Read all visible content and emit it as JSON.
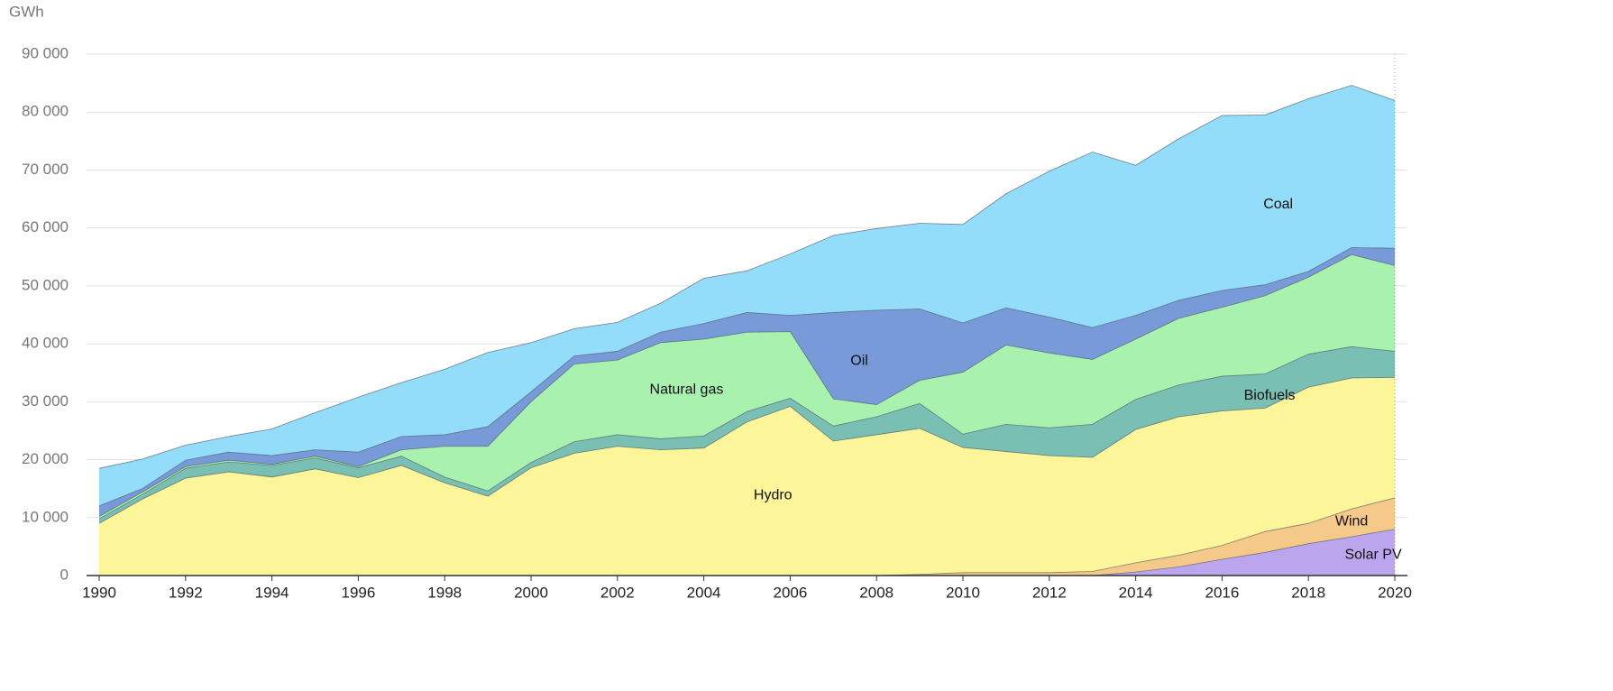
{
  "chart_data": {
    "type": "stacked-area",
    "y_label": "GWh",
    "x": [
      1990,
      1991,
      1992,
      1993,
      1994,
      1995,
      1996,
      1997,
      1998,
      1999,
      2000,
      2001,
      2002,
      2003,
      2004,
      2005,
      2006,
      2007,
      2008,
      2009,
      2010,
      2011,
      2012,
      2013,
      2014,
      2015,
      2016,
      2017,
      2018,
      2019,
      2020
    ],
    "xlim": [
      1990,
      2020
    ],
    "xticks": [
      1990,
      1992,
      1994,
      1996,
      1998,
      2000,
      2002,
      2004,
      2006,
      2008,
      2010,
      2012,
      2014,
      2016,
      2018,
      2020
    ],
    "ylim": [
      0,
      90000
    ],
    "yticks": [
      0,
      {
        "value": 10000,
        "label": "10 000"
      },
      {
        "value": 20000,
        "label": "20 000"
      },
      {
        "value": 30000,
        "label": "30 000"
      },
      {
        "value": 40000,
        "label": "40 000"
      },
      {
        "value": 50000,
        "label": "50 000"
      },
      {
        "value": 60000,
        "label": "60 000"
      },
      {
        "value": 70000,
        "label": "70 000"
      },
      {
        "value": 80000,
        "label": "80 000"
      },
      {
        "value": 90000,
        "label": "90 000"
      }
    ],
    "grid": true,
    "series": [
      {
        "name": "Solar PV",
        "color": "#bba6ee",
        "values": [
          0,
          0,
          0,
          0,
          0,
          0,
          0,
          0,
          0,
          0,
          0,
          0,
          0,
          0,
          0,
          0,
          0,
          0,
          0,
          0,
          0,
          0,
          0,
          0,
          600,
          1500,
          2800,
          4000,
          5500,
          6700,
          8000
        ]
      },
      {
        "name": "Wind",
        "color": "#f5c98a",
        "values": [
          0,
          0,
          0,
          0,
          0,
          0,
          0,
          0,
          0,
          0,
          0,
          0,
          0,
          0,
          0,
          0,
          0,
          0,
          0,
          200,
          500,
          500,
          500,
          700,
          1600,
          2000,
          2400,
          3600,
          3500,
          4800,
          5400
        ]
      },
      {
        "name": "Hydro",
        "color": "#fdf59a",
        "values": [
          9000,
          13200,
          16800,
          17900,
          17000,
          18400,
          16900,
          19000,
          16000,
          13700,
          18600,
          21100,
          22300,
          21700,
          22000,
          26500,
          29200,
          23200,
          24300,
          25200,
          21600,
          20900,
          20200,
          19700,
          23000,
          23900,
          23200,
          21300,
          23500,
          22600,
          20800
        ]
      },
      {
        "name": "Biofuels",
        "color": "#79bfb4",
        "values": [
          800,
          800,
          1700,
          1700,
          2000,
          1900,
          1700,
          1600,
          1000,
          900,
          900,
          2000,
          2000,
          1900,
          2100,
          1800,
          1400,
          2600,
          3100,
          4300,
          2300,
          4700,
          4800,
          5700,
          5200,
          5500,
          6000,
          5900,
          5700,
          5400,
          4500
        ]
      },
      {
        "name": "Natural gas",
        "color": "#a9f1af",
        "values": [
          400,
          400,
          300,
          300,
          200,
          300,
          200,
          1100,
          5300,
          7700,
          10500,
          13400,
          12900,
          16600,
          16700,
          13700,
          11500,
          4700,
          2100,
          4000,
          10700,
          13700,
          12900,
          11200,
          10400,
          11500,
          11900,
          13500,
          13300,
          15900,
          14800
        ]
      },
      {
        "name": "Oil",
        "color": "#789ad9",
        "values": [
          1800,
          600,
          1100,
          1400,
          1500,
          1100,
          2500,
          2300,
          2000,
          3400,
          1700,
          1400,
          1500,
          1800,
          2700,
          3400,
          2800,
          14900,
          16300,
          12300,
          8500,
          6400,
          6200,
          5500,
          4100,
          3100,
          2900,
          1900,
          1000,
          1200,
          3000
        ]
      },
      {
        "name": "Coal",
        "color": "#93dcfa",
        "values": [
          6500,
          5100,
          2600,
          2700,
          4600,
          6400,
          9500,
          9300,
          11300,
          12800,
          8500,
          4700,
          5000,
          5000,
          7800,
          7200,
          10600,
          13300,
          14100,
          14800,
          17000,
          19700,
          25200,
          30300,
          25900,
          27900,
          30200,
          29300,
          29800,
          28000,
          25500
        ]
      }
    ]
  }
}
